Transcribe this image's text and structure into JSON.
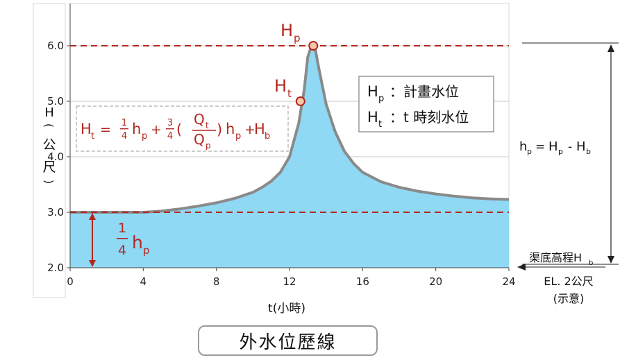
{
  "chart_data": {
    "type": "area",
    "ylabel_chars": [
      "H",
      "(",
      "公",
      "尺",
      ")"
    ],
    "xlabel": "t(小時)",
    "xlim": [
      0,
      24
    ],
    "ylim": [
      2.0,
      6.5
    ],
    "x_ticks": [
      "0",
      "4",
      "8",
      "12",
      "16",
      "20",
      "24"
    ],
    "y_ticks": [
      "2.0",
      "3.0",
      "4.0",
      "5.0",
      "6.0"
    ],
    "grid": "horizontal",
    "series": [
      {
        "x": [
          0,
          2,
          4,
          5,
          6,
          7,
          8,
          9,
          10,
          10.5,
          11,
          11.5,
          12,
          12.5,
          12.8,
          13.0,
          13.2,
          13.4,
          13.6,
          14,
          14.5,
          15,
          15.5,
          16,
          17,
          18,
          19,
          20,
          21,
          22,
          23,
          24
        ],
        "y": [
          3.0,
          3.0,
          3.0,
          3.02,
          3.06,
          3.11,
          3.17,
          3.25,
          3.36,
          3.45,
          3.56,
          3.72,
          4.0,
          4.6,
          5.2,
          5.8,
          6.0,
          5.95,
          5.6,
          4.95,
          4.45,
          4.1,
          3.88,
          3.72,
          3.55,
          3.45,
          3.38,
          3.33,
          3.29,
          3.26,
          3.24,
          3.23
        ]
      }
    ],
    "annotations": {
      "hp_level": 6.0,
      "quarter_level": 3.0,
      "hp_point": {
        "x": 13.3,
        "y": 6.0
      },
      "ht_point": {
        "x": 12.6,
        "y": 5.0
      },
      "hp_label": "H",
      "hp_sub": "p",
      "ht_label": "H",
      "ht_sub": "t",
      "quarter_frac_num": "1",
      "quarter_frac_den": "4",
      "quarter_h": "h",
      "quarter_sub": "p",
      "formula": {
        "lhs": "H",
        "lhs_sub": "t",
        "eq": "=",
        "f1_num": "1",
        "f1_den": "4",
        "h1": "h",
        "h1_sub": "p",
        "plus1": "+",
        "f2_num": "3",
        "f2_den": "4",
        "lparen": "(",
        "q_num": "Q",
        "q_num_sub": "t",
        "q_den": "Q",
        "q_den_sub": "p",
        "rparen": ")",
        "h2": "h",
        "h2_sub": "p",
        "plus2": "+",
        "hb": "H",
        "hb_sub": "b"
      },
      "legend": {
        "row1_sym": "H",
        "row1_sub": "p",
        "row1_text": "：計畫水位",
        "row2_sym": "H",
        "row2_sub": "t",
        "row2_text": "：t 時刻水位"
      },
      "right": {
        "hp_eq_lhs": "h",
        "hp_eq_lhs_sub": "p",
        "hp_eq_mid": "=",
        "hp_eq_r1": "H",
        "hp_eq_r1_sub": "p",
        "hp_eq_minus": "-",
        "hp_eq_r2": "H",
        "hp_eq_r2_sub": "b",
        "bed_label": "渠底高程H",
        "bed_label_sub": "b",
        "el_label": "EL. 2公尺",
        "schematic": "(示意)"
      }
    },
    "colors": {
      "fill": "#8fd9f5",
      "curve": "#8a8a8a",
      "red": "#b3261e",
      "grid": "#c8c8c8",
      "point_fill": "#f8c7a8"
    }
  },
  "title": "外水位歷線"
}
